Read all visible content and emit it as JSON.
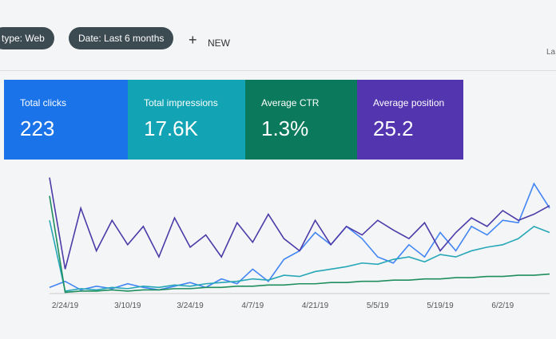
{
  "filters": {
    "type_chip": "type: Web",
    "date_chip": "Date: Last 6 months",
    "new_button": "NEW",
    "corner_text": "La"
  },
  "metrics": [
    {
      "label": "Total clicks",
      "value": "223",
      "color": "#1a73e8"
    },
    {
      "label": "Total impressions",
      "value": "17.6K",
      "color": "#12a4b4"
    },
    {
      "label": "Average CTR",
      "value": "1.3%",
      "color": "#0b7a5c"
    },
    {
      "label": "Average position",
      "value": "25.2",
      "color": "#5335b0"
    }
  ],
  "chart_data": {
    "type": "line",
    "x": [
      null,
      "2/24/19",
      null,
      null,
      null,
      "3/10/19",
      null,
      null,
      null,
      "3/24/19",
      null,
      null,
      null,
      "4/7/19",
      null,
      null,
      null,
      "4/21/19",
      null,
      null,
      null,
      "5/5/19",
      null,
      null,
      null,
      "5/19/19",
      null,
      null,
      null,
      "6/2/19",
      null,
      null,
      null
    ],
    "ylim": [
      0,
      100
    ],
    "series": [
      {
        "color": "#4285f4",
        "values": [
          5,
          10,
          3,
          6,
          4,
          8,
          5,
          3,
          6,
          9,
          5,
          12,
          8,
          20,
          10,
          28,
          35,
          50,
          40,
          55,
          45,
          30,
          25,
          40,
          30,
          50,
          35,
          55,
          48,
          60,
          58,
          90,
          70
        ]
      },
      {
        "color": "#26a7b8",
        "values": [
          60,
          2,
          4,
          3,
          5,
          4,
          6,
          5,
          7,
          6,
          8,
          9,
          10,
          12,
          11,
          15,
          14,
          18,
          20,
          22,
          25,
          24,
          28,
          30,
          26,
          32,
          30,
          35,
          38,
          40,
          45,
          55,
          50
        ]
      },
      {
        "color": "#1e8e5e",
        "values": [
          80,
          1,
          2,
          2,
          3,
          2,
          3,
          3,
          4,
          4,
          5,
          5,
          6,
          6,
          7,
          7,
          8,
          8,
          9,
          9,
          10,
          10,
          11,
          11,
          12,
          12,
          13,
          13,
          14,
          14,
          15,
          15,
          16
        ]
      },
      {
        "color": "#4b3aa8",
        "values": [
          95,
          20,
          70,
          35,
          60,
          40,
          55,
          30,
          62,
          38,
          48,
          30,
          58,
          42,
          65,
          45,
          35,
          60,
          40,
          55,
          48,
          60,
          52,
          45,
          58,
          35,
          50,
          62,
          55,
          68,
          60,
          65,
          72
        ]
      }
    ]
  }
}
